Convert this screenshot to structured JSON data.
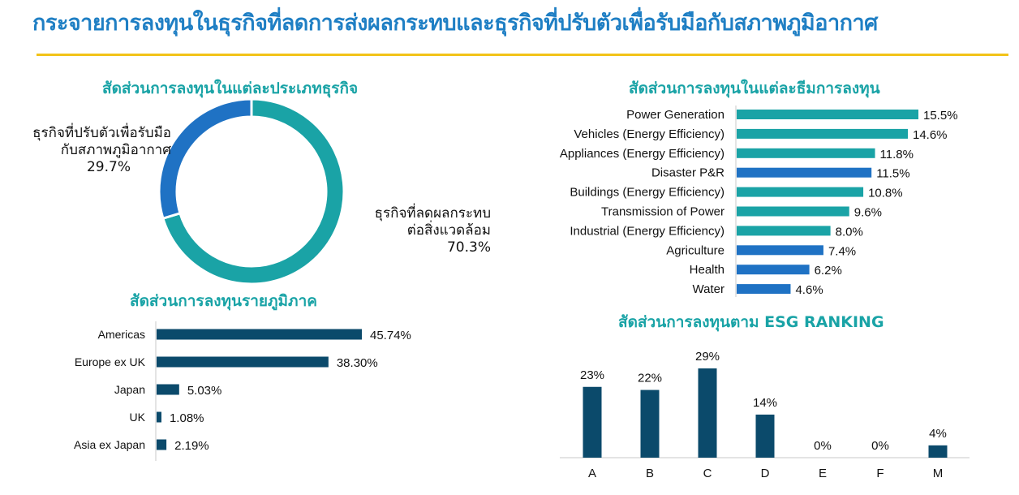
{
  "page": {
    "title": "กระจายการลงทุนในธุรกิจที่ลดการส่งผลกระทบและธุรกิจที่ปรับตัวเพื่อรับมือกับสภาพภูมิอากาศ"
  },
  "colors": {
    "teal": "#1aa3a6",
    "blue": "#1f72c4",
    "navy": "#0b4a6b",
    "title_blue": "#1f7fc4",
    "rule_gold": "#f2c318"
  },
  "chart_data": [
    {
      "id": "business-type",
      "type": "pie",
      "title": "สัดส่วนการลงทุนในแต่ละประเภทธุรกิจ",
      "slices": [
        {
          "label_lines": [
            "ธุรกิจที่ลดผลกระทบ",
            "ต่อสิ่งแวดล้อม"
          ],
          "value": 70.3,
          "value_label": "70.3%",
          "color": "#1aa3a6"
        },
        {
          "label_lines": [
            "ธุรกิจที่ปรับตัวเพื่อรับมือ",
            "กับสภาพภูมิอากาศ"
          ],
          "value": 29.7,
          "value_label": "29.7%",
          "color": "#1f72c4"
        }
      ]
    },
    {
      "id": "theme",
      "type": "bar",
      "orientation": "horizontal",
      "title": "สัดส่วนการลงทุนในแต่ละธีมการลงทุน",
      "categories": [
        "Power Generation",
        "Vehicles (Energy Efficiency)",
        "Appliances (Energy Efficiency)",
        "Disaster P&R",
        "Buildings (Energy Efficiency)",
        "Transmission of Power",
        "Industrial (Energy Efficiency)",
        "Agriculture",
        "Health",
        "Water"
      ],
      "values": [
        15.5,
        14.6,
        11.8,
        11.5,
        10.8,
        9.6,
        8.0,
        7.4,
        6.2,
        4.6
      ],
      "value_labels": [
        "15.5%",
        "14.6%",
        "11.8%",
        "11.5%",
        "10.8%",
        "9.6%",
        "8.0%",
        "7.4%",
        "6.2%",
        "4.6%"
      ],
      "bar_colors": [
        "#1aa3a6",
        "#1aa3a6",
        "#1aa3a6",
        "#1f72c4",
        "#1aa3a6",
        "#1aa3a6",
        "#1aa3a6",
        "#1f72c4",
        "#1f72c4",
        "#1f72c4"
      ],
      "xlim": [
        0,
        15.5
      ]
    },
    {
      "id": "region",
      "type": "bar",
      "orientation": "horizontal",
      "title": "สัดส่วนการลงทุนรายภูมิภาค",
      "categories": [
        "Americas",
        "Europe ex UK",
        "Japan",
        "UK",
        "Asia ex Japan"
      ],
      "values": [
        45.74,
        38.3,
        5.03,
        1.08,
        2.19
      ],
      "value_labels": [
        "45.74%",
        "38.30%",
        "5.03%",
        "1.08%",
        "2.19%"
      ],
      "bar_color": "#0b4a6b",
      "xlim": [
        0,
        45.74
      ]
    },
    {
      "id": "esg",
      "type": "bar",
      "orientation": "vertical",
      "title": "สัดส่วนการลงทุนตาม ESG RANKING",
      "categories": [
        "A",
        "B",
        "C",
        "D",
        "E",
        "F",
        "M"
      ],
      "values": [
        23,
        22,
        29,
        14,
        0,
        0,
        4
      ],
      "value_labels": [
        "23%",
        "22%",
        "29%",
        "14%",
        "0%",
        "0%",
        "4%"
      ],
      "bar_color": "#0b4a6b",
      "ylim": [
        0,
        29
      ]
    }
  ]
}
